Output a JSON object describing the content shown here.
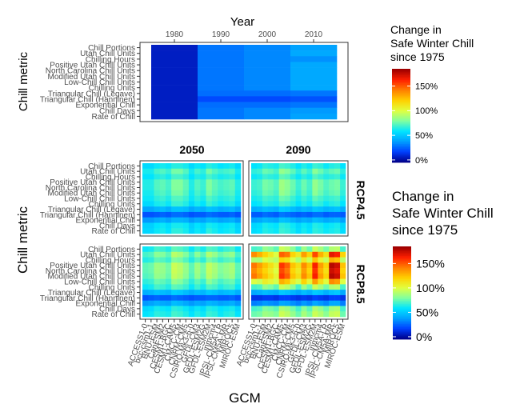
{
  "chart_data": [
    {
      "type": "heatmap",
      "panel": "historical",
      "title": "Year",
      "ylabel": "Chill metric",
      "x_ticks": [
        1980,
        1990,
        2000,
        2010
      ],
      "xlim": [
        1975,
        2015
      ],
      "metrics": [
        "Chill Portions",
        "Utah Chill Units",
        "Chilling Hours",
        "Positive Utah Chill Units",
        "North Carolina Chill Units",
        "Modified Utah Chill Units",
        "Low-Chill Chill Units",
        "Chilling Units",
        "Triangular Chill (Legave)",
        "Triangular Chill (Hanninen)",
        "Exponential Chill",
        "Chill Days",
        "Rate of Chill"
      ],
      "segments": [
        {
          "from": 1975,
          "to": 1985,
          "values": [
            5,
            5,
            5,
            5,
            5,
            5,
            5,
            5,
            5,
            5,
            5,
            5,
            5
          ]
        },
        {
          "from": 1985,
          "to": 1995,
          "values": [
            28,
            28,
            28,
            28,
            28,
            28,
            28,
            28,
            26,
            18,
            26,
            28,
            28
          ]
        },
        {
          "from": 1995,
          "to": 2005,
          "values": [
            32,
            32,
            32,
            32,
            32,
            32,
            32,
            32,
            26,
            18,
            26,
            32,
            32
          ]
        },
        {
          "from": 2005,
          "to": 2015,
          "values": [
            38,
            40,
            34,
            40,
            40,
            40,
            40,
            40,
            28,
            20,
            28,
            36,
            38
          ]
        }
      ]
    },
    {
      "type": "heatmap",
      "panel": "scenarios",
      "xlabel": "GCM",
      "ylabel": "Chill metric",
      "columns": [
        "2050",
        "2090"
      ],
      "rows": [
        "RCP4.5",
        "RCP8.5"
      ],
      "gcms": [
        "ACCESS1-0",
        "bcc-csm1-1",
        "BNU-ESM",
        "CanESM2",
        "CESM1-BGC",
        "CESM1-CAM5",
        "CMCC-CM",
        "CNRM-CM5",
        "CSIRO-Mk3-6-0",
        "GFDL-CM3",
        "GFDL-ESM2G",
        "GFDL-ESM2M",
        "inmcm4",
        "IPSL-CM5A-LR",
        "IPSL-CM5A-MR",
        "MIROC5",
        "MIROC-ESM"
      ],
      "metrics": [
        "Chill Portions",
        "Utah Chill Units",
        "Chilling Hours",
        "Positive Utah Chill Units",
        "North Carolina Chill Units",
        "Modified Utah Chill Units",
        "Low-Chill Chill Units",
        "Chilling Units",
        "Triangular Chill (Legave)",
        "Triangular Chill (Hanninen)",
        "Exponential Chill",
        "Chill Days",
        "Rate of Chill"
      ],
      "values": {
        "RCP4.5_2050": [
          [
            55,
            55,
            60,
            62,
            60,
            65,
            65,
            62,
            55,
            60,
            58,
            65,
            62,
            58,
            60,
            62,
            55
          ],
          [
            62,
            62,
            70,
            72,
            68,
            78,
            78,
            72,
            62,
            70,
            66,
            78,
            72,
            68,
            70,
            72,
            62
          ],
          [
            58,
            58,
            64,
            66,
            62,
            70,
            70,
            66,
            58,
            64,
            62,
            70,
            66,
            62,
            64,
            66,
            58
          ],
          [
            64,
            64,
            72,
            74,
            70,
            80,
            80,
            74,
            64,
            72,
            68,
            80,
            74,
            70,
            72,
            74,
            64
          ],
          [
            64,
            64,
            72,
            74,
            70,
            80,
            80,
            74,
            64,
            72,
            68,
            80,
            74,
            70,
            72,
            74,
            64
          ],
          [
            62,
            62,
            70,
            72,
            68,
            78,
            78,
            72,
            62,
            70,
            66,
            78,
            72,
            68,
            70,
            72,
            62
          ],
          [
            60,
            60,
            66,
            68,
            64,
            72,
            72,
            68,
            60,
            66,
            62,
            72,
            68,
            64,
            66,
            68,
            60
          ],
          [
            55,
            55,
            62,
            64,
            60,
            68,
            68,
            64,
            55,
            62,
            58,
            68,
            64,
            60,
            62,
            64,
            55
          ],
          [
            40,
            40,
            44,
            46,
            42,
            48,
            48,
            46,
            40,
            44,
            42,
            48,
            46,
            42,
            44,
            46,
            40
          ],
          [
            20,
            20,
            22,
            24,
            22,
            26,
            26,
            24,
            20,
            22,
            22,
            26,
            24,
            22,
            22,
            24,
            20
          ],
          [
            36,
            36,
            40,
            42,
            38,
            44,
            44,
            42,
            36,
            40,
            38,
            44,
            42,
            38,
            40,
            42,
            36
          ],
          [
            52,
            52,
            58,
            60,
            56,
            62,
            62,
            60,
            52,
            58,
            54,
            62,
            60,
            56,
            58,
            60,
            52
          ],
          [
            54,
            54,
            60,
            62,
            58,
            66,
            66,
            62,
            54,
            60,
            56,
            66,
            62,
            58,
            60,
            62,
            54
          ]
        ],
        "RCP4.5_2090": [
          [
            58,
            60,
            66,
            64,
            62,
            70,
            68,
            64,
            58,
            64,
            60,
            68,
            66,
            60,
            64,
            66,
            58
          ],
          [
            66,
            68,
            76,
            74,
            70,
            84,
            80,
            74,
            66,
            74,
            68,
            82,
            76,
            70,
            74,
            76,
            66
          ],
          [
            60,
            62,
            68,
            66,
            64,
            74,
            72,
            66,
            60,
            66,
            62,
            72,
            68,
            64,
            66,
            68,
            60
          ],
          [
            68,
            70,
            78,
            76,
            72,
            86,
            82,
            76,
            68,
            76,
            70,
            84,
            78,
            72,
            76,
            78,
            68
          ],
          [
            68,
            70,
            78,
            76,
            72,
            86,
            82,
            76,
            68,
            76,
            70,
            84,
            78,
            72,
            76,
            78,
            68
          ],
          [
            66,
            68,
            76,
            74,
            70,
            84,
            80,
            74,
            66,
            74,
            68,
            82,
            76,
            70,
            74,
            76,
            66
          ],
          [
            62,
            64,
            70,
            68,
            66,
            76,
            74,
            68,
            62,
            68,
            64,
            74,
            70,
            66,
            68,
            70,
            62
          ],
          [
            58,
            60,
            66,
            64,
            62,
            70,
            68,
            64,
            58,
            64,
            60,
            68,
            66,
            60,
            64,
            66,
            58
          ],
          [
            42,
            44,
            48,
            46,
            44,
            52,
            50,
            46,
            42,
            46,
            44,
            50,
            48,
            44,
            46,
            48,
            42
          ],
          [
            22,
            22,
            26,
            24,
            22,
            28,
            26,
            24,
            22,
            24,
            22,
            26,
            26,
            22,
            24,
            24,
            22
          ],
          [
            38,
            40,
            44,
            42,
            40,
            48,
            46,
            42,
            38,
            42,
            40,
            46,
            44,
            40,
            42,
            44,
            38
          ],
          [
            54,
            56,
            62,
            60,
            58,
            66,
            64,
            60,
            54,
            60,
            56,
            64,
            62,
            58,
            60,
            62,
            54
          ],
          [
            56,
            58,
            64,
            62,
            60,
            68,
            66,
            62,
            56,
            62,
            58,
            66,
            64,
            60,
            62,
            64,
            56
          ]
        ],
        "RCP8.5_2050": [
          [
            60,
            62,
            70,
            68,
            64,
            74,
            72,
            68,
            60,
            68,
            62,
            72,
            70,
            64,
            68,
            70,
            60
          ],
          [
            70,
            72,
            82,
            80,
            74,
            92,
            88,
            80,
            70,
            82,
            74,
            90,
            84,
            76,
            80,
            84,
            70
          ],
          [
            64,
            66,
            74,
            72,
            68,
            80,
            78,
            72,
            64,
            72,
            66,
            78,
            74,
            68,
            72,
            74,
            64
          ],
          [
            74,
            76,
            86,
            84,
            78,
            96,
            92,
            84,
            74,
            86,
            78,
            94,
            88,
            80,
            84,
            88,
            74
          ],
          [
            74,
            76,
            86,
            84,
            78,
            96,
            92,
            84,
            74,
            86,
            78,
            94,
            88,
            80,
            84,
            88,
            74
          ],
          [
            72,
            74,
            84,
            82,
            76,
            94,
            90,
            82,
            72,
            84,
            76,
            92,
            86,
            78,
            82,
            86,
            72
          ],
          [
            66,
            68,
            76,
            74,
            70,
            84,
            80,
            74,
            66,
            74,
            68,
            82,
            76,
            70,
            74,
            76,
            66
          ],
          [
            60,
            62,
            70,
            68,
            64,
            74,
            72,
            68,
            60,
            68,
            62,
            72,
            70,
            64,
            68,
            70,
            60
          ],
          [
            42,
            44,
            48,
            46,
            44,
            52,
            50,
            46,
            42,
            46,
            44,
            50,
            48,
            44,
            46,
            48,
            42
          ],
          [
            20,
            22,
            24,
            22,
            22,
            26,
            24,
            22,
            20,
            22,
            22,
            24,
            24,
            22,
            22,
            24,
            20
          ],
          [
            36,
            38,
            42,
            40,
            38,
            46,
            44,
            40,
            36,
            40,
            38,
            44,
            42,
            38,
            40,
            42,
            36
          ],
          [
            54,
            56,
            62,
            60,
            58,
            66,
            64,
            60,
            54,
            60,
            56,
            64,
            62,
            58,
            60,
            62,
            54
          ],
          [
            58,
            60,
            66,
            64,
            62,
            70,
            68,
            64,
            58,
            64,
            60,
            68,
            66,
            60,
            64,
            66,
            58
          ]
        ],
        "RCP8.5_2090": [
          [
            70,
            72,
            84,
            80,
            74,
            96,
            92,
            82,
            70,
            86,
            76,
            96,
            88,
            78,
            90,
            92,
            70
          ],
          [
            140,
            130,
            120,
            110,
            100,
            150,
            145,
            120,
            110,
            135,
            120,
            155,
            130,
            115,
            170,
            165,
            120
          ],
          [
            90,
            88,
            100,
            96,
            92,
            120,
            115,
            100,
            90,
            110,
            96,
            125,
            105,
            95,
            130,
            125,
            92
          ],
          [
            145,
            135,
            125,
            115,
            105,
            160,
            150,
            125,
            115,
            140,
            125,
            165,
            135,
            120,
            180,
            175,
            125
          ],
          [
            140,
            130,
            120,
            110,
            100,
            155,
            145,
            120,
            110,
            135,
            120,
            160,
            130,
            115,
            175,
            170,
            120
          ],
          [
            145,
            135,
            125,
            115,
            105,
            160,
            150,
            125,
            115,
            140,
            125,
            165,
            135,
            120,
            180,
            175,
            125
          ],
          [
            100,
            96,
            108,
            104,
            98,
            130,
            124,
            108,
            98,
            120,
            104,
            135,
            115,
            102,
            140,
            135,
            100
          ],
          [
            70,
            72,
            84,
            80,
            74,
            96,
            92,
            82,
            70,
            86,
            76,
            96,
            88,
            78,
            90,
            92,
            70
          ],
          [
            40,
            42,
            46,
            44,
            42,
            50,
            48,
            44,
            40,
            46,
            42,
            50,
            48,
            42,
            48,
            50,
            40
          ],
          [
            12,
            12,
            14,
            14,
            12,
            16,
            16,
            14,
            12,
            14,
            12,
            16,
            14,
            12,
            16,
            16,
            12
          ],
          [
            30,
            32,
            36,
            34,
            32,
            40,
            38,
            34,
            30,
            36,
            32,
            40,
            36,
            32,
            40,
            40,
            30
          ],
          [
            70,
            72,
            80,
            78,
            74,
            90,
            86,
            78,
            70,
            82,
            74,
            90,
            84,
            76,
            88,
            90,
            70
          ],
          [
            76,
            78,
            86,
            84,
            80,
            96,
            92,
            84,
            76,
            88,
            80,
            96,
            90,
            82,
            94,
            96,
            76
          ]
        ]
      }
    }
  ],
  "legend_small": {
    "title_lines": [
      "Change in",
      "Safe Winter Chill",
      "since 1975"
    ],
    "ticks": [
      "0%",
      "50%",
      "100%",
      "150%"
    ]
  },
  "legend_large": {
    "title_lines": [
      "Change in",
      "Safe Winter Chill",
      "since 1975"
    ],
    "ticks": [
      "0%",
      "50%",
      "100%",
      "150%"
    ]
  },
  "colorscale": {
    "min": -5,
    "max": 185,
    "colors": [
      "#00008b",
      "#0040ff",
      "#00a0ff",
      "#00e5ff",
      "#80ffa0",
      "#e0ff40",
      "#ffd000",
      "#ff8000",
      "#ff2000",
      "#a00000"
    ]
  }
}
